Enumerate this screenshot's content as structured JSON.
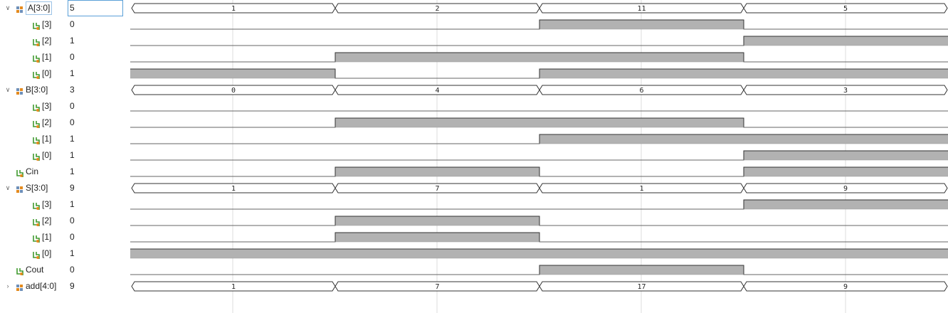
{
  "signals": [
    {
      "name": "A[3:0]",
      "value": "5",
      "kind": "bus",
      "level": 0,
      "expander": "expanded",
      "highlight": true,
      "selected": true,
      "segments": [
        "1",
        "2",
        "11",
        "5"
      ]
    },
    {
      "name": "[3]",
      "value": "0",
      "kind": "bit",
      "level": 1,
      "bits": [
        0,
        0,
        1,
        0
      ]
    },
    {
      "name": "[2]",
      "value": "1",
      "kind": "bit",
      "level": 1,
      "bits": [
        0,
        0,
        0,
        1
      ]
    },
    {
      "name": "[1]",
      "value": "0",
      "kind": "bit",
      "level": 1,
      "bits": [
        0,
        1,
        1,
        0
      ]
    },
    {
      "name": "[0]",
      "value": "1",
      "kind": "bit",
      "level": 1,
      "bits": [
        1,
        0,
        1,
        1
      ]
    },
    {
      "name": "B[3:0]",
      "value": "3",
      "kind": "bus",
      "level": 0,
      "expander": "expanded",
      "segments": [
        "0",
        "4",
        "6",
        "3"
      ]
    },
    {
      "name": "[3]",
      "value": "0",
      "kind": "bit",
      "level": 1,
      "bits": [
        0,
        0,
        0,
        0
      ]
    },
    {
      "name": "[2]",
      "value": "0",
      "kind": "bit",
      "level": 1,
      "bits": [
        0,
        1,
        1,
        0
      ]
    },
    {
      "name": "[1]",
      "value": "1",
      "kind": "bit",
      "level": 1,
      "bits": [
        0,
        0,
        1,
        1
      ]
    },
    {
      "name": "[0]",
      "value": "1",
      "kind": "bit",
      "level": 1,
      "bits": [
        0,
        0,
        0,
        1
      ]
    },
    {
      "name": "Cin",
      "value": "1",
      "kind": "bit",
      "level": 0,
      "bits": [
        0,
        1,
        0,
        1
      ]
    },
    {
      "name": "S[3:0]",
      "value": "9",
      "kind": "bus",
      "level": 0,
      "expander": "expanded",
      "segments": [
        "1",
        "7",
        "1",
        "9"
      ]
    },
    {
      "name": "[3]",
      "value": "1",
      "kind": "bit",
      "level": 1,
      "bits": [
        0,
        0,
        0,
        1
      ]
    },
    {
      "name": "[2]",
      "value": "0",
      "kind": "bit",
      "level": 1,
      "bits": [
        0,
        1,
        0,
        0
      ]
    },
    {
      "name": "[1]",
      "value": "0",
      "kind": "bit",
      "level": 1,
      "bits": [
        0,
        1,
        0,
        0
      ]
    },
    {
      "name": "[0]",
      "value": "1",
      "kind": "bit",
      "level": 1,
      "bits": [
        1,
        1,
        1,
        1
      ]
    },
    {
      "name": "Cout",
      "value": "0",
      "kind": "bit",
      "level": 0,
      "bits": [
        0,
        0,
        1,
        0
      ]
    },
    {
      "name": "add[4:0]",
      "value": "9",
      "kind": "bus",
      "level": 0,
      "expander": "collapsed",
      "segments": [
        "1",
        "7",
        "17",
        "9"
      ]
    }
  ],
  "icons": {
    "bus": "bus-signal-icon",
    "bit": "bit-signal-icon",
    "expanded": "chevron-down-icon",
    "collapsed": "chevron-right-icon"
  },
  "colors": {
    "wave_fill": "#b2b2b2",
    "wave_line": "#333333",
    "grid": "#dcdcdc",
    "icon_green": "#3f9a2e",
    "icon_orange": "#e38a1e",
    "icon_blue": "#6e8fb8"
  }
}
